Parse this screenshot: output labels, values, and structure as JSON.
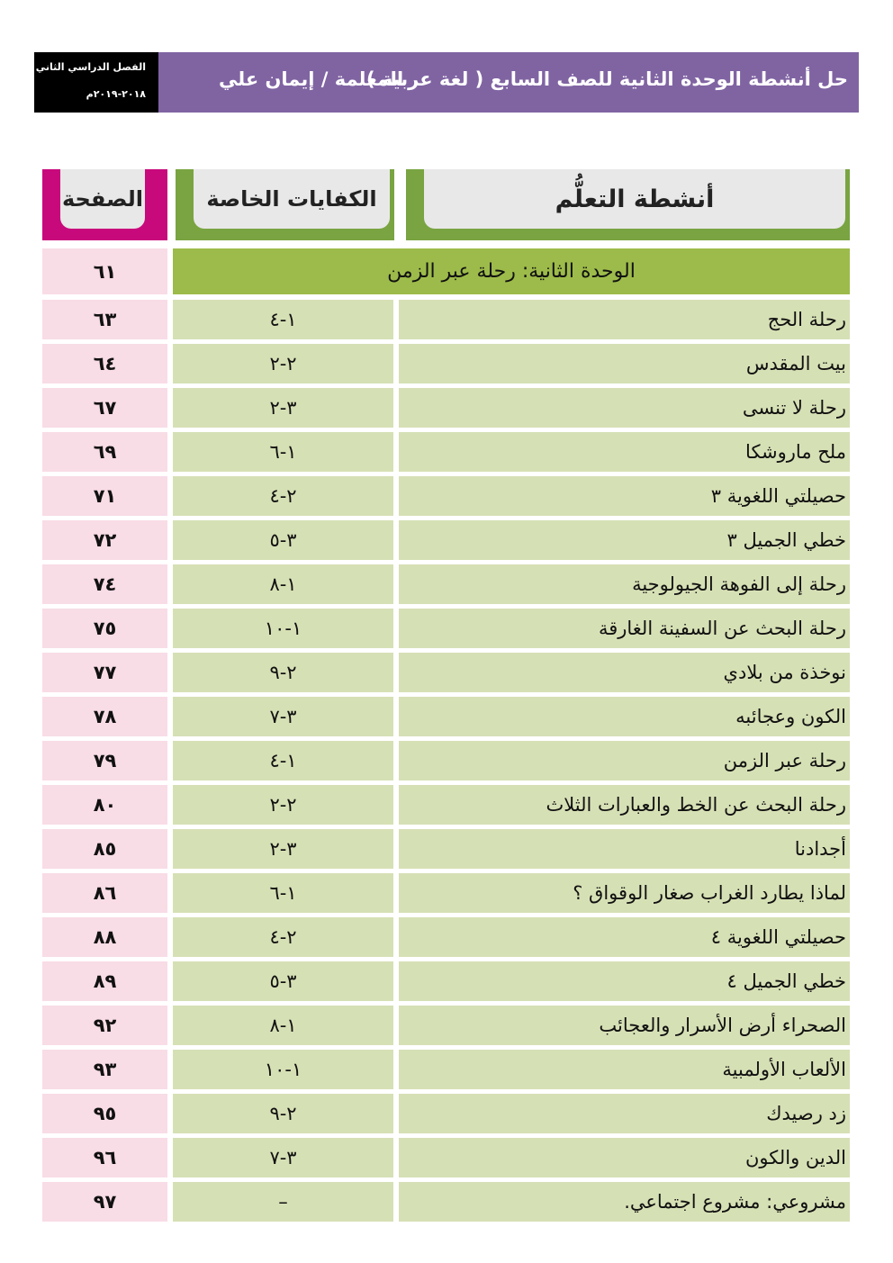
{
  "header": {
    "semester": "الفصل الدراسي الثاني",
    "year": "٢٠١٨-٢٠١٩م",
    "title": "حل أنشطة الوحدة الثانية للصف السابع ( لغة عربية )",
    "teacher": "المعلمة / إيمان علي",
    "banner_color": "#8064a2"
  },
  "columns": {
    "activities": "أنشطة التعلُّم",
    "competencies": "الكفايات الخاصة",
    "page": "الصفحة"
  },
  "unit": {
    "title": "الوحدة الثانية: رحلة عبر الزمن",
    "page": "٦١"
  },
  "rows": [
    {
      "activity": "رحلة الحج",
      "comp": "١-٤",
      "page": "٦٣"
    },
    {
      "activity": "بيت المقدس",
      "comp": "٢-٢",
      "page": "٦٤"
    },
    {
      "activity": "رحلة لا تنسى",
      "comp": "٣-٢",
      "page": "٦٧"
    },
    {
      "activity": "ملح ماروشكا",
      "comp": "١-٦",
      "page": "٦٩"
    },
    {
      "activity": "حصيلتي اللغوية ٣",
      "comp": "٢-٤",
      "page": "٧١"
    },
    {
      "activity": "خطي الجميل ٣",
      "comp": "٣-٥",
      "page": "٧٢"
    },
    {
      "activity": "رحلة إلى الفوهة الجيولوجية",
      "comp": "١-٨",
      "page": "٧٤"
    },
    {
      "activity": "رحلة البحث عن السفينة الغارقة",
      "comp": "١-١٠",
      "page": "٧٥"
    },
    {
      "activity": "نوخذة من بلادي",
      "comp": "٢-٩",
      "page": "٧٧"
    },
    {
      "activity": "الكون وعجائبه",
      "comp": "٣-٧",
      "page": "٧٨"
    },
    {
      "activity": "رحلة عبر الزمن",
      "comp": "١-٤",
      "page": "٧٩"
    },
    {
      "activity": "رحلة البحث عن الخط والعبارات الثلاث",
      "comp": "٢-٢",
      "page": "٨٠"
    },
    {
      "activity": "أجدادنا",
      "comp": "٣-٢",
      "page": "٨٥"
    },
    {
      "activity": "لماذا يطارد الغراب صغار الوقواق ؟",
      "comp": "١-٦",
      "page": "٨٦"
    },
    {
      "activity": "حصيلتي اللغوية ٤",
      "comp": "٢-٤",
      "page": "٨٨"
    },
    {
      "activity": "خطي الجميل ٤",
      "comp": "٣-٥",
      "page": "٨٩"
    },
    {
      "activity": "الصحراء أرض الأسرار والعجائب",
      "comp": "١-٨",
      "page": "٩٢"
    },
    {
      "activity": "الألعاب الأولمبية",
      "comp": "١-١٠",
      "page": "٩٣"
    },
    {
      "activity": "زد رصيدك",
      "comp": "٢-٩",
      "page": "٩٥"
    },
    {
      "activity": "الدين والكون",
      "comp": "٣-٧",
      "page": "٩٦"
    },
    {
      "activity": "مشروعي: مشروع اجتماعي.",
      "comp": "–",
      "page": "٩٧"
    }
  ]
}
